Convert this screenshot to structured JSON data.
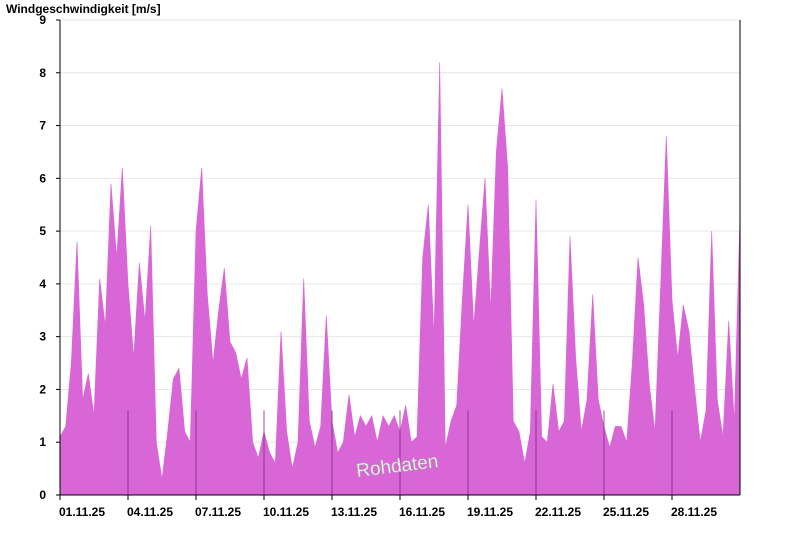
{
  "chart_data": {
    "type": "area",
    "ylabel": "Windgeschwindigkeit [m/s]",
    "xlabel": "",
    "title": "",
    "ylim": [
      0,
      9
    ],
    "yticks": [
      0,
      1,
      2,
      3,
      4,
      5,
      6,
      7,
      8,
      9
    ],
    "xlim": [
      0,
      30
    ],
    "xticks": [
      {
        "x": 0,
        "label": "01.11.25"
      },
      {
        "x": 3,
        "label": "04.11.25"
      },
      {
        "x": 6,
        "label": "07.11.25"
      },
      {
        "x": 9,
        "label": "10.11.25"
      },
      {
        "x": 12,
        "label": "13.11.25"
      },
      {
        "x": 15,
        "label": "16.11.25"
      },
      {
        "x": 18,
        "label": "19.11.25"
      },
      {
        "x": 21,
        "label": "22.11.25"
      },
      {
        "x": 24,
        "label": "25.11.25"
      },
      {
        "x": 27,
        "label": "28.11.25"
      }
    ],
    "grid": true,
    "fill_color": "#d966d6",
    "series": [
      {
        "name": "Rohdaten",
        "x": [
          0.0,
          0.25,
          0.5,
          0.75,
          1.0,
          1.25,
          1.5,
          1.75,
          2.0,
          2.25,
          2.5,
          2.75,
          3.0,
          3.25,
          3.5,
          3.75,
          4.0,
          4.25,
          4.5,
          4.75,
          5.0,
          5.25,
          5.5,
          5.75,
          6.0,
          6.25,
          6.5,
          6.75,
          7.0,
          7.25,
          7.5,
          7.75,
          8.0,
          8.25,
          8.5,
          8.75,
          9.0,
          9.25,
          9.5,
          9.75,
          10.0,
          10.25,
          10.5,
          10.75,
          11.0,
          11.25,
          11.5,
          11.75,
          12.0,
          12.25,
          12.5,
          12.75,
          13.0,
          13.25,
          13.5,
          13.75,
          14.0,
          14.25,
          14.5,
          14.75,
          15.0,
          15.25,
          15.5,
          15.75,
          16.0,
          16.25,
          16.5,
          16.75,
          17.0,
          17.25,
          17.5,
          17.75,
          18.0,
          18.25,
          18.5,
          18.75,
          19.0,
          19.25,
          19.5,
          19.75,
          20.0,
          20.25,
          20.5,
          20.75,
          21.0,
          21.25,
          21.5,
          21.75,
          22.0,
          22.25,
          22.5,
          22.75,
          23.0,
          23.25,
          23.5,
          23.75,
          24.0,
          24.25,
          24.5,
          24.75,
          25.0,
          25.25,
          25.5,
          25.75,
          26.0,
          26.25,
          26.5,
          26.75,
          27.0,
          27.25,
          27.5,
          27.75,
          28.0,
          28.25,
          28.5,
          28.75,
          29.0,
          29.25,
          29.5,
          29.75,
          30.0
        ],
        "values": [
          1.1,
          1.3,
          2.5,
          4.8,
          1.8,
          2.3,
          1.5,
          4.1,
          3.2,
          5.9,
          4.5,
          6.2,
          4.0,
          2.6,
          4.4,
          3.3,
          5.1,
          1.0,
          0.3,
          1.2,
          2.2,
          2.4,
          1.2,
          1.0,
          5.0,
          6.2,
          3.8,
          2.5,
          3.5,
          4.3,
          2.9,
          2.7,
          2.2,
          2.6,
          1.0,
          0.7,
          1.2,
          0.8,
          0.6,
          3.1,
          1.2,
          0.5,
          1.0,
          4.1,
          1.4,
          0.9,
          1.3,
          3.4,
          1.4,
          0.8,
          1.0,
          1.9,
          1.1,
          1.5,
          1.3,
          1.5,
          1.0,
          1.5,
          1.3,
          1.5,
          1.2,
          1.7,
          1.0,
          1.1,
          4.5,
          5.5,
          3.0,
          8.2,
          0.9,
          1.4,
          1.7,
          3.7,
          5.5,
          3.2,
          4.6,
          6.0,
          3.5,
          6.5,
          7.7,
          6.2,
          1.4,
          1.2,
          0.6,
          1.2,
          5.6,
          1.1,
          1.0,
          2.1,
          1.2,
          1.4,
          4.9,
          2.6,
          1.2,
          1.8,
          3.8,
          1.8,
          1.3,
          0.9,
          1.3,
          1.3,
          1.0,
          2.5,
          4.5,
          3.6,
          2.1,
          1.2,
          4.0,
          6.8,
          3.7,
          2.6,
          3.6,
          3.1,
          2.0,
          1.0,
          1.6,
          5.0,
          1.8,
          1.1,
          3.3,
          1.4,
          5.3
        ]
      }
    ],
    "annotations": [
      "Rohdaten"
    ]
  }
}
